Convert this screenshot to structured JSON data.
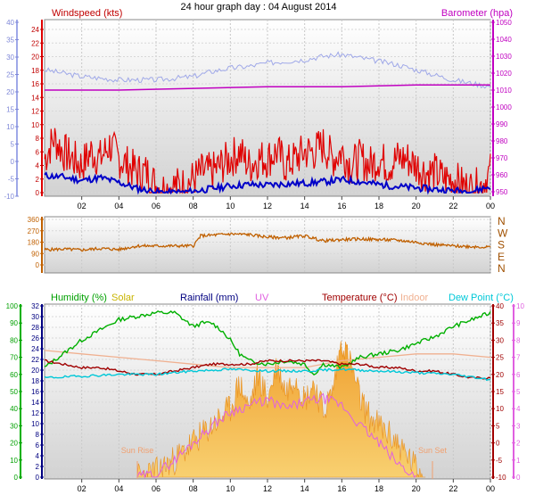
{
  "title": "24 hour graph day : 04 August 2014",
  "time_ticks": [
    "02",
    "04",
    "06",
    "08",
    "10",
    "12",
    "14",
    "16",
    "18",
    "20",
    "22",
    "00"
  ],
  "colors": {
    "wind": "#e00000",
    "gust_axis": "#9fa8e8",
    "barometer": "#c000c0",
    "avg_wind": "#0000c8",
    "wind_dir": "#c06000",
    "humidity": "#00b000",
    "solar": "#c8b400",
    "rainfall": "#000080",
    "uv": "#e060e0",
    "temperature": "#a00000",
    "indoor": "#f0b090",
    "dewpoint": "#00c8d8",
    "dir_labels": "#a05000"
  },
  "chart_data": [
    {
      "type": "line",
      "name": "wind-barometer",
      "labels": {
        "left": "Windspeed (kts)",
        "right": "Barometer (hpa)"
      },
      "left_outer_ticks": [
        "40",
        "35",
        "30",
        "25",
        "20",
        "15",
        "10",
        "5",
        "0",
        "-5",
        "-10"
      ],
      "left_inner_ticks": [
        "24",
        "22",
        "20",
        "18",
        "16",
        "14",
        "12",
        "10",
        "8",
        "6",
        "4",
        "2",
        "0"
      ],
      "right_ticks": [
        "1050",
        "1040",
        "1030",
        "1020",
        "1010",
        "1000",
        "990",
        "980",
        "970",
        "960",
        "950"
      ],
      "ylim_wind": [
        0,
        25
      ],
      "ylim_baro": [
        950,
        1050
      ],
      "series": [
        {
          "name": "",
          "x": [
            0,
            0.5,
            1,
            1.5,
            2,
            2.5,
            3,
            3.5,
            4,
            4.5,
            5,
            5.5,
            6,
            6.5,
            7,
            7.5,
            8,
            8.5,
            9,
            9.5,
            10,
            10.5,
            11,
            11.5,
            12,
            12.5,
            13,
            13.5,
            14,
            14.5,
            15,
            15.5,
            16,
            16.5,
            17,
            17.5,
            18,
            18.5,
            19,
            19.5,
            20,
            20.5,
            21,
            21.5,
            22,
            22.5,
            23,
            23.5,
            24
          ],
          "y": [
            5,
            8,
            6,
            5,
            4,
            6,
            5,
            7,
            5,
            4,
            3,
            3,
            1,
            0.5,
            1,
            1,
            2,
            3,
            3,
            4,
            5,
            6,
            4,
            5,
            5,
            6,
            4,
            5,
            6,
            6,
            7,
            5,
            6,
            4,
            5,
            4,
            5,
            4,
            5,
            5,
            4,
            3,
            3,
            2,
            2,
            1,
            0.5,
            1,
            3
          ]
        },
        {
          "name": "",
          "x": [
            0,
            1,
            2,
            3,
            4,
            5,
            6,
            7,
            8,
            9,
            10,
            11,
            12,
            13,
            14,
            15,
            16,
            17,
            18,
            19,
            20,
            21,
            22,
            23,
            24
          ],
          "y": [
            2.5,
            2.3,
            1.8,
            2.2,
            1.5,
            0.6,
            0.1,
            0,
            0.2,
            0.6,
            1.0,
            1.2,
            1.1,
            1.3,
            1.4,
            1.6,
            1.9,
            1.6,
            1.2,
            0.9,
            0.7,
            0.5,
            0.3,
            0.2,
            0.9
          ]
        },
        {
          "name": "",
          "x": [
            0,
            1,
            2,
            3,
            4,
            5,
            6,
            7,
            8,
            9,
            10,
            11,
            12,
            13,
            14,
            15,
            16,
            17,
            18,
            19,
            20,
            21,
            22,
            23,
            24
          ],
          "y": [
            1022,
            1020,
            1018,
            1017,
            1016,
            1016,
            1016,
            1017,
            1018,
            1021,
            1023,
            1024,
            1026,
            1027,
            1028,
            1030,
            1031,
            1029,
            1027,
            1025,
            1022,
            1019,
            1016,
            1014,
            1012
          ]
        },
        {
          "name": "",
          "x": [
            0,
            4,
            8,
            12,
            16,
            20,
            24
          ],
          "y": [
            1010,
            1010,
            1011,
            1012,
            1012,
            1013,
            1013
          ]
        }
      ]
    },
    {
      "type": "line",
      "name": "wind-direction",
      "left_ticks": [
        "360",
        "270",
        "180",
        "90",
        "0"
      ],
      "right_labels": [
        "N",
        "W",
        "S",
        "E",
        "N"
      ],
      "ylim": [
        0,
        360
      ],
      "series": [
        {
          "name": "",
          "x": [
            0,
            1,
            2,
            3,
            4,
            5,
            6,
            7,
            8,
            8.4,
            9,
            10,
            11,
            12,
            13,
            14,
            15,
            16,
            17,
            18,
            19,
            20,
            21,
            22,
            23,
            24
          ],
          "y": [
            120,
            125,
            118,
            130,
            122,
            150,
            150,
            150,
            150,
            230,
            235,
            245,
            240,
            220,
            215,
            230,
            190,
            200,
            205,
            200,
            195,
            180,
            160,
            150,
            145,
            140
          ]
        }
      ]
    },
    {
      "type": "line",
      "name": "climate",
      "labels": {
        "humidity": "Humidity (%)",
        "solar": "Solar",
        "rainfall": "Rainfall (mm)",
        "uv": "UV",
        "temperature": "Temperature (°C)",
        "indoor": "Indoor",
        "dewpoint": "Dew Point (°C)"
      },
      "humidity_ticks": [
        "100",
        "90",
        "80",
        "70",
        "60",
        "50",
        "40",
        "30",
        "20",
        "10",
        "0"
      ],
      "rain_ticks": [
        "32",
        "30",
        "28",
        "26",
        "24",
        "22",
        "20",
        "18",
        "16",
        "14",
        "12",
        "10",
        "8",
        "6",
        "4",
        "2",
        "0"
      ],
      "temp_ticks": [
        "40",
        "35",
        "30",
        "25",
        "20",
        "15",
        "10",
        "5",
        "0",
        "-5",
        "-10"
      ],
      "uv_ticks": [
        "10",
        "9",
        "8",
        "7",
        "6",
        "5",
        "4",
        "3",
        "2",
        "1",
        "0"
      ],
      "annotations": [
        "Sun Rise",
        "Sun Set"
      ],
      "ylim_temp": [
        -10,
        40
      ],
      "series": [
        {
          "name": "",
          "x": [
            0,
            1,
            2,
            3,
            4,
            5,
            6,
            7,
            7.5,
            8,
            8.5,
            9,
            9.5,
            10,
            10.5,
            11,
            12,
            13,
            14,
            14.5,
            15,
            16,
            17,
            18,
            19,
            20,
            21,
            22,
            23,
            24
          ],
          "y": [
            22,
            26,
            30,
            33,
            36,
            37,
            38,
            38,
            36,
            34,
            35,
            35,
            33,
            30,
            26,
            24,
            23,
            24,
            23,
            20,
            23,
            22,
            25,
            26,
            27,
            29,
            31,
            34,
            36,
            38
          ]
        },
        {
          "name": "",
          "x": [
            0,
            2,
            4,
            6,
            8,
            10,
            12,
            14,
            16,
            18,
            20,
            22,
            24
          ],
          "y": [
            27,
            26,
            25,
            24,
            23,
            22,
            22,
            22,
            24,
            25,
            26,
            26,
            25
          ]
        },
        {
          "name": "",
          "x": [
            0,
            1,
            2,
            3,
            4,
            5,
            6,
            7,
            8,
            9,
            10,
            11,
            12,
            13,
            14,
            15,
            16,
            17,
            18,
            19,
            20,
            21,
            22,
            23,
            24
          ],
          "y": [
            24,
            23,
            22,
            22,
            21,
            20,
            20,
            21,
            22,
            23,
            23,
            23,
            24,
            24,
            24,
            24,
            23,
            23,
            22,
            22,
            21,
            21,
            20,
            19,
            19
          ]
        },
        {
          "name": "",
          "x": [
            0,
            2,
            4,
            6,
            8,
            10,
            12,
            14,
            16,
            18,
            20,
            22,
            24
          ],
          "y": [
            19,
            19.5,
            20,
            20,
            21,
            21.5,
            21,
            21,
            21.5,
            21,
            20.5,
            20,
            18.5
          ]
        },
        {
          "name": "",
          "x": [
            5,
            6,
            7,
            8,
            9,
            10,
            10.5,
            11,
            11.5,
            12,
            12.5,
            13,
            13.5,
            14,
            14.5,
            15,
            15.5,
            16,
            16.5,
            17,
            17.5,
            18,
            19,
            20,
            20.5
          ],
          "y": [
            0,
            0.3,
            1.0,
            2.0,
            3.0,
            4.0,
            5.5,
            4.0,
            6.0,
            4.5,
            6.5,
            5.0,
            6.0,
            4.5,
            5.5,
            3.8,
            5.0,
            8.0,
            6.5,
            4.5,
            3.5,
            3.0,
            2.0,
            0.5,
            0
          ]
        },
        {
          "name": "",
          "x": [
            5,
            6,
            7,
            8,
            9,
            10,
            11,
            12,
            13,
            14,
            15,
            16,
            17,
            18,
            19,
            20
          ],
          "y": [
            0,
            0.2,
            1.0,
            2.0,
            3.0,
            3.8,
            4.2,
            4.5,
            4.0,
            4.4,
            4.6,
            4.2,
            3.0,
            2.0,
            0.8,
            0
          ]
        }
      ]
    }
  ]
}
